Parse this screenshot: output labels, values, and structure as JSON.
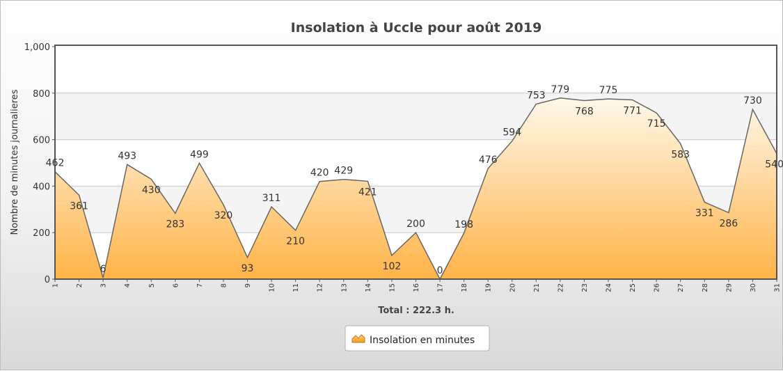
{
  "chart_data": {
    "type": "area",
    "title": "Insolation à Uccle pour août 2019",
    "xlabel": "",
    "ylabel": "Nombre de minutes journalieres",
    "ylim": [
      0,
      1000
    ],
    "yticks": [
      "0",
      "200",
      "400",
      "600",
      "800",
      "1,000"
    ],
    "x": [
      "1",
      "2",
      "3",
      "4",
      "5",
      "6",
      "7",
      "8",
      "9",
      "10",
      "11",
      "12",
      "13",
      "14",
      "15",
      "16",
      "17",
      "18",
      "19",
      "20",
      "21",
      "22",
      "23",
      "24",
      "25",
      "26",
      "27",
      "28",
      "29",
      "30",
      "31"
    ],
    "series": [
      {
        "name": "Insolation en minutes",
        "values": [
          462,
          361,
          6,
          493,
          430,
          283,
          499,
          320,
          93,
          311,
          210,
          420,
          429,
          421,
          102,
          200,
          0,
          198,
          476,
          594,
          753,
          779,
          768,
          775,
          771,
          715,
          583,
          331,
          286,
          730,
          540
        ]
      }
    ],
    "label_positions": [
      "above",
      "below",
      "above",
      "above",
      "below",
      "below",
      "above",
      "below",
      "below",
      "above",
      "below",
      "above",
      "above",
      "below",
      "below",
      "above",
      "above",
      "above",
      "above",
      "above",
      "above",
      "above",
      "below",
      "above",
      "below",
      "below",
      "below",
      "below",
      "below",
      "above",
      "below"
    ],
    "total_label": "Total : 222.3 h.",
    "grid": true,
    "legend": "bottom-center",
    "colors": {
      "fill_top": "#fff8ea",
      "fill_bottom": "#ffb347",
      "line": "#666666",
      "plot_border": "#555555"
    }
  }
}
